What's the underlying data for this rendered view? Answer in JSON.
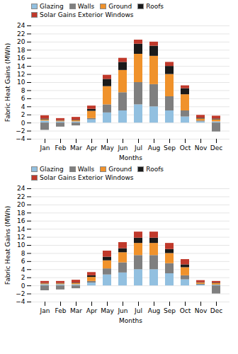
{
  "chart_data": [
    {
      "type": "bar",
      "stacked": true,
      "categories": [
        "Jan",
        "Feb",
        "Mar",
        "Apr",
        "May",
        "Jun",
        "Jul",
        "Aug",
        "Sep",
        "Oct",
        "Nov",
        "Dec"
      ],
      "series": [
        {
          "name": "Glazing",
          "color": "#92C0E0",
          "values": [
            0.5,
            0.3,
            0.3,
            0.8,
            2.5,
            3.0,
            4.5,
            4.0,
            3.0,
            1.5,
            0.3,
            0.3
          ]
        },
        {
          "name": "Walls",
          "color": "#7F7F7F",
          "values": [
            -1.8,
            -1.0,
            -0.7,
            0.3,
            2.0,
            4.5,
            5.5,
            5.5,
            3.5,
            1.5,
            0.2,
            -2.2
          ]
        },
        {
          "name": "Ground",
          "color": "#F0922B",
          "values": [
            0.3,
            0.2,
            0.3,
            1.8,
            4.5,
            5.5,
            7.0,
            7.0,
            5.5,
            4.0,
            0.5,
            0.5
          ]
        },
        {
          "name": "Roofs",
          "color": "#1A1A1A",
          "values": [
            0.2,
            0.1,
            0.1,
            0.5,
            1.8,
            2.0,
            2.5,
            2.5,
            2.0,
            1.5,
            0.2,
            0.2
          ]
        },
        {
          "name": "Solar Gains Exterior Windows",
          "color": "#C0392B",
          "values": [
            0.8,
            0.5,
            0.7,
            0.8,
            1.0,
            1.0,
            1.0,
            1.0,
            1.0,
            0.7,
            0.7,
            0.7
          ]
        }
      ],
      "xlabel": "Months",
      "ylabel": "Fabric Heat Gains (MWh)",
      "ylim": [
        -4,
        24
      ],
      "yticks": [
        -4,
        -2,
        0,
        2,
        4,
        6,
        8,
        10,
        12,
        14,
        16,
        18,
        20,
        22,
        24
      ],
      "grid": true,
      "legend": "upper left"
    },
    {
      "type": "bar",
      "stacked": true,
      "categories": [
        "Jan",
        "Feb",
        "Mar",
        "Apr",
        "May",
        "Jun",
        "Jul",
        "Aug",
        "Sep",
        "Oct",
        "Nov",
        "Dec"
      ],
      "series": [
        {
          "name": "Glazing",
          "color": "#92C0E0",
          "values": [
            0.3,
            0.3,
            0.3,
            0.7,
            2.7,
            3.2,
            4.0,
            4.0,
            3.0,
            1.5,
            0.2,
            0.2
          ]
        },
        {
          "name": "Walls",
          "color": "#7F7F7F",
          "values": [
            -1.2,
            -1.0,
            -0.7,
            0.4,
            1.5,
            2.5,
            3.5,
            3.5,
            2.5,
            1.0,
            0.2,
            -2.0
          ]
        },
        {
          "name": "Ground",
          "color": "#F0922B",
          "values": [
            0.2,
            0.2,
            0.3,
            1.0,
            2.0,
            2.5,
            3.0,
            3.0,
            2.5,
            2.0,
            0.3,
            0.4
          ]
        },
        {
          "name": "Roofs",
          "color": "#1A1A1A",
          "values": [
            0.1,
            0.1,
            0.1,
            0.4,
            0.9,
            1.0,
            1.3,
            1.3,
            1.0,
            0.7,
            0.1,
            0.1
          ]
        },
        {
          "name": "Solar Gains Exterior Windows",
          "color": "#C0392B",
          "values": [
            0.5,
            0.5,
            0.7,
            0.8,
            1.5,
            1.5,
            1.5,
            1.5,
            1.5,
            1.3,
            0.5,
            0.4
          ]
        }
      ],
      "xlabel": "Months",
      "ylabel": "Fabric Heat Gains (MWh)",
      "ylim": [
        -4,
        24
      ],
      "yticks": [
        -4,
        -2,
        0,
        2,
        4,
        6,
        8,
        10,
        12,
        14,
        16,
        18,
        20,
        22,
        24
      ],
      "grid": true,
      "legend": "upper left"
    }
  ]
}
